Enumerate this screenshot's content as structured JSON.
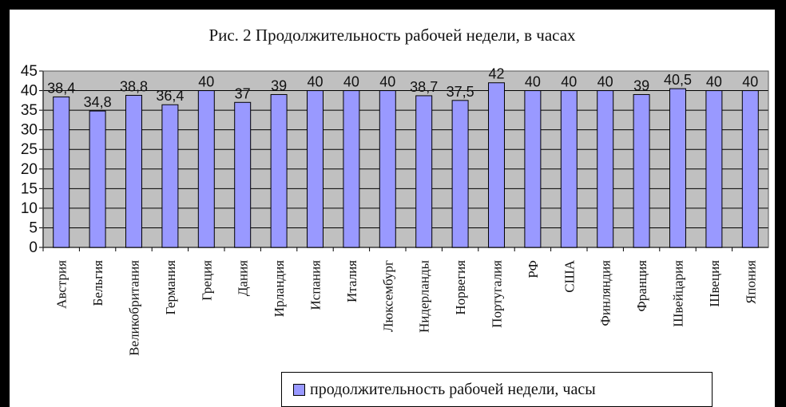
{
  "chart_data": {
    "type": "bar",
    "title": "Рис. 2 Продолжительность рабочей недели, в часах",
    "categories": [
      "Австрия",
      "Бельгия",
      "Великобритания",
      "Германия",
      "Греция",
      "Дания",
      "Ирландия",
      "Испания",
      "Италия",
      "Люксембург",
      "Нидерланды",
      "Норвегия",
      "Португалия",
      "РФ",
      "США",
      "Финляндия",
      "Франция",
      "Швейцария",
      "Швеция",
      "Япония"
    ],
    "data_labels": [
      "38,4",
      "34,8",
      "38,8",
      "36,4",
      "40",
      "37",
      "39",
      "40",
      "40",
      "40",
      "38,7",
      "37,5",
      "42",
      "40",
      "40",
      "40",
      "39",
      "40,5",
      "40",
      "40"
    ],
    "series": [
      {
        "name": "продолжительность рабочей недели, часы",
        "values": [
          38.4,
          34.8,
          38.8,
          36.4,
          40,
          37,
          39,
          40,
          40,
          40,
          38.7,
          37.5,
          42,
          40,
          40,
          40,
          39,
          40.5,
          40,
          40
        ]
      }
    ],
    "ylim": [
      0,
      45
    ],
    "yticks": [
      "0",
      "5",
      "10",
      "15",
      "20",
      "25",
      "30",
      "35",
      "40",
      "45"
    ],
    "grid": true,
    "legend": "bottom-right",
    "colors": {
      "bar": "#9999ff",
      "plot_bg": "#c0c0c0",
      "bar_stroke": "#000000"
    }
  }
}
